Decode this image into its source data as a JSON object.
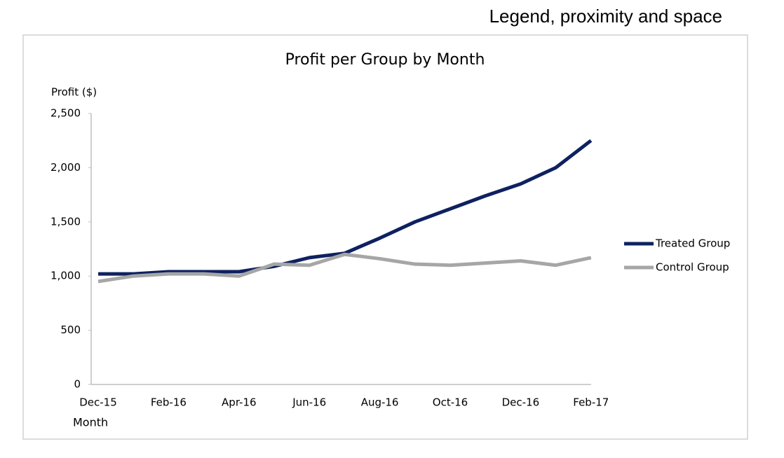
{
  "heading": "Legend, proximity and space",
  "chart_data": {
    "type": "line",
    "title": "Profit per Group by Month",
    "y_label": "Profit ($)",
    "x_label": "Month",
    "categories": [
      "Dec-15",
      null,
      "Feb-16",
      null,
      "Apr-16",
      null,
      "Jun-16",
      null,
      "Aug-16",
      null,
      "Oct-16",
      null,
      "Dec-16",
      null,
      "Feb-17"
    ],
    "series": [
      {
        "name": "Treated Group",
        "color": "#0e2160",
        "values": [
          1020,
          1020,
          1040,
          1040,
          1040,
          1090,
          1170,
          1210,
          1350,
          1500,
          1620,
          1740,
          1850,
          2000,
          2250
        ]
      },
      {
        "name": "Control Group",
        "color": "#a6a6a6",
        "values": [
          950,
          1000,
          1020,
          1020,
          1000,
          1110,
          1100,
          1200,
          1160,
          1110,
          1100,
          1120,
          1140,
          1100,
          1170
        ]
      }
    ],
    "ylim": [
      0,
      2500
    ],
    "yticks": [
      0,
      500,
      {
        "value": 1000,
        "label": "1,000"
      },
      {
        "value": 1500,
        "label": "1,500"
      },
      {
        "value": 2000,
        "label": "2,000"
      },
      {
        "value": 2500,
        "label": "2,500"
      }
    ],
    "grid": false,
    "legend": "right"
  }
}
